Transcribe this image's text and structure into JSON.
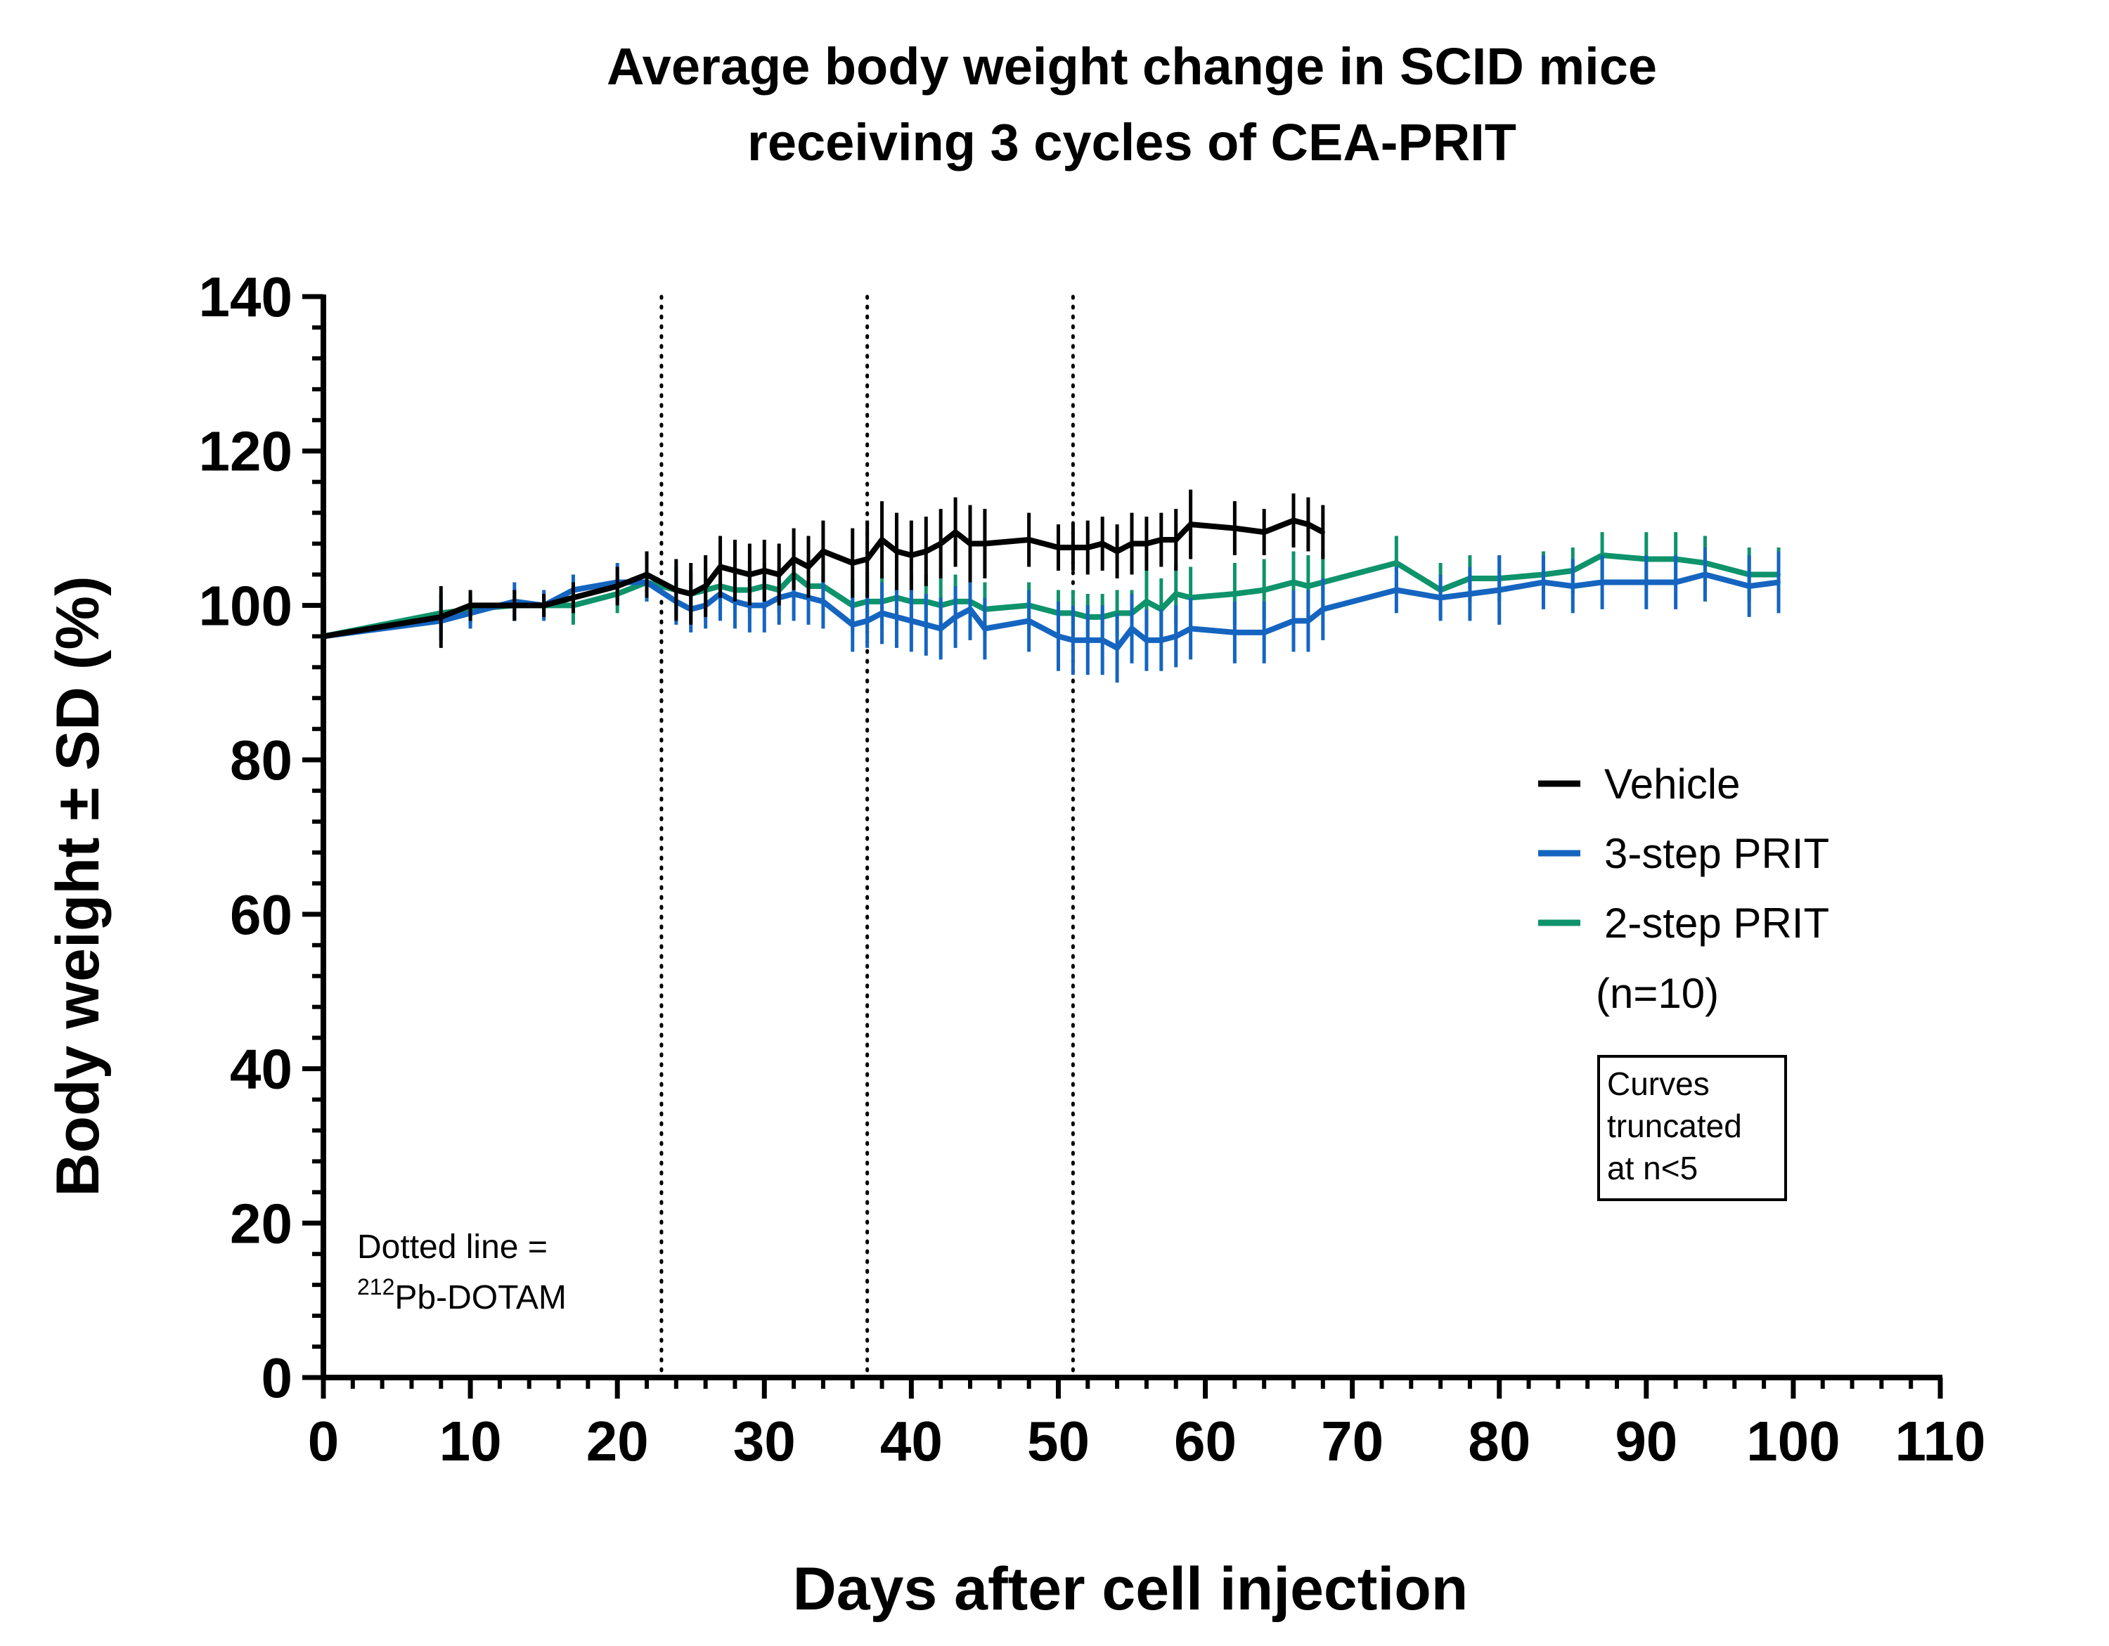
{
  "chart_data": {
    "type": "line",
    "title_lines": [
      "Average body weight change in SCID mice",
      "receiving 3 cycles of CEA-PRIT"
    ],
    "xlabel": "Days after cell injection",
    "ylabel": "Body weight ± SD (%)",
    "xlim": [
      0,
      110
    ],
    "ylim": [
      0,
      140
    ],
    "x_ticks": [
      0,
      10,
      20,
      30,
      40,
      50,
      60,
      70,
      80,
      90,
      100,
      110
    ],
    "y_ticks": [
      0,
      20,
      40,
      60,
      80,
      100,
      120,
      140
    ],
    "x_tick_labels": [
      "0",
      "10",
      "20",
      "30",
      "40",
      "50",
      "60",
      "70",
      "80",
      "90",
      "100",
      "110"
    ],
    "y_tick_labels": [
      "0",
      "20",
      "40",
      "60",
      "80",
      "100",
      "120",
      "140"
    ],
    "vlines": [
      23,
      37,
      51
    ],
    "series": [
      {
        "name": "Vehicle",
        "color": "#000000",
        "x": [
          0,
          8,
          10,
          13,
          15,
          17,
          20,
          22,
          24,
          25,
          26,
          27,
          28,
          29,
          30,
          31,
          32,
          33,
          34,
          36,
          37,
          38,
          39,
          40,
          41,
          42,
          43,
          44,
          45,
          48,
          50,
          51,
          52,
          53,
          54,
          55,
          56,
          57,
          58,
          59,
          62,
          64,
          66,
          67,
          68
        ],
        "y": [
          96,
          98.5,
          100,
          100,
          100,
          101,
          102.5,
          104,
          102,
          101.5,
          102.5,
          105,
          104.5,
          104,
          104.5,
          104,
          106,
          105,
          107,
          105.5,
          106,
          108.5,
          107,
          106.5,
          107,
          108,
          109.5,
          108,
          108,
          108.5,
          107.5,
          107.5,
          107.5,
          108,
          107,
          108,
          108,
          108.5,
          108.5,
          110.5,
          110,
          109.5,
          111,
          110.5,
          109.5
        ],
        "err": [
          0,
          4,
          2,
          2,
          1.5,
          2,
          2.5,
          3,
          4,
          4,
          4,
          4,
          4,
          4,
          4,
          4,
          4,
          4,
          4,
          4.5,
          5,
          5,
          5,
          4.5,
          4.5,
          4.5,
          4.5,
          5,
          4.5,
          3.5,
          3,
          3,
          3.5,
          3.5,
          3.5,
          4,
          3.5,
          3.5,
          4,
          4.5,
          3.5,
          3,
          3.5,
          3.5,
          3.5
        ]
      },
      {
        "name": "3-step PRIT",
        "color": "#1565c0",
        "x": [
          0,
          8,
          10,
          13,
          15,
          17,
          20,
          22,
          24,
          25,
          26,
          27,
          28,
          29,
          30,
          31,
          32,
          33,
          34,
          36,
          37,
          38,
          39,
          40,
          41,
          42,
          43,
          44,
          45,
          48,
          50,
          51,
          52,
          53,
          54,
          55,
          56,
          57,
          58,
          59,
          62,
          64,
          66,
          67,
          68,
          73,
          76,
          78,
          80,
          83,
          85,
          87,
          90,
          92,
          94,
          97,
          99
        ],
        "y": [
          96,
          98,
          99,
          100.5,
          100,
          102,
          103,
          103,
          100.5,
          99.5,
          100,
          101.5,
          100.5,
          100,
          100,
          101,
          101.5,
          101,
          100.5,
          97.5,
          98,
          99,
          98.5,
          98,
          97.5,
          97,
          98.5,
          99.5,
          97,
          98,
          96,
          95.5,
          95.5,
          95.5,
          94.5,
          97,
          95.5,
          95.5,
          96,
          97,
          96.5,
          96.5,
          98,
          98,
          99.5,
          102,
          101,
          101.5,
          102,
          103,
          102.5,
          103,
          103,
          103,
          104,
          102.5,
          103
        ],
        "err": [
          0,
          2.5,
          2,
          2.5,
          2,
          2,
          2.5,
          2.5,
          3,
          3,
          3,
          3.5,
          3.5,
          3.5,
          3.5,
          3.5,
          3.5,
          3.5,
          3.5,
          3.5,
          3.5,
          4,
          4,
          4,
          4,
          4,
          4,
          4,
          4,
          4,
          4.5,
          4.5,
          4.5,
          4.5,
          4.5,
          4.5,
          4,
          4,
          4,
          4,
          4,
          4,
          4,
          4,
          4,
          3,
          3,
          3.5,
          4.5,
          3.5,
          3.5,
          3.5,
          3.5,
          3.5,
          3.5,
          4,
          4
        ]
      },
      {
        "name": "2-step PRIT",
        "color": "#0e936b",
        "x": [
          0,
          8,
          10,
          13,
          15,
          17,
          20,
          22,
          24,
          25,
          26,
          27,
          28,
          29,
          30,
          31,
          32,
          33,
          34,
          36,
          37,
          38,
          39,
          40,
          41,
          42,
          43,
          44,
          45,
          48,
          50,
          51,
          52,
          53,
          54,
          55,
          56,
          57,
          58,
          59,
          62,
          64,
          66,
          67,
          68,
          73,
          76,
          78,
          80,
          83,
          85,
          87,
          90,
          92,
          94,
          97,
          99
        ],
        "y": [
          96,
          99,
          99.5,
          100,
          100,
          100,
          101.5,
          103,
          102,
          101.5,
          102,
          102.5,
          102,
          102,
          102.5,
          102,
          104,
          102.5,
          102.5,
          100,
          100.5,
          100.5,
          101,
          100.5,
          100.5,
          100,
          100.5,
          100.5,
          99.5,
          100,
          99,
          99,
          98.5,
          98.5,
          99,
          99,
          100.5,
          99.5,
          101.5,
          101,
          101.5,
          102,
          103,
          102.5,
          103,
          105.5,
          102,
          103.5,
          103.5,
          104,
          104.5,
          106.5,
          106,
          106,
          105.5,
          104,
          104
        ],
        "err": [
          0,
          2.5,
          2,
          2,
          1.5,
          2.5,
          2.5,
          2.5,
          3,
          3,
          3,
          3,
          3,
          3,
          3,
          3,
          3,
          3,
          3,
          3.5,
          3.5,
          3.5,
          3.5,
          3.5,
          3.5,
          3.5,
          3.5,
          3.5,
          3.5,
          3,
          3,
          3,
          3,
          3,
          3,
          3,
          4,
          4,
          4,
          4,
          4,
          4,
          4,
          4,
          4,
          3.5,
          3.5,
          3,
          3,
          3,
          3,
          3,
          3.5,
          3.5,
          3.5,
          3.5,
          3.5
        ]
      }
    ],
    "legend": {
      "position": "right",
      "items": [
        "Vehicle",
        "3-step PRIT",
        "2-step PRIT"
      ],
      "n_note": "(n=10)"
    },
    "annotations": {
      "dotted_note_line1": "Dotted line =",
      "dotted_note_sup": "212",
      "dotted_note_rest": "Pb-DOTAM",
      "box_lines": [
        "Curves",
        "truncated",
        "at n<5"
      ]
    }
  }
}
